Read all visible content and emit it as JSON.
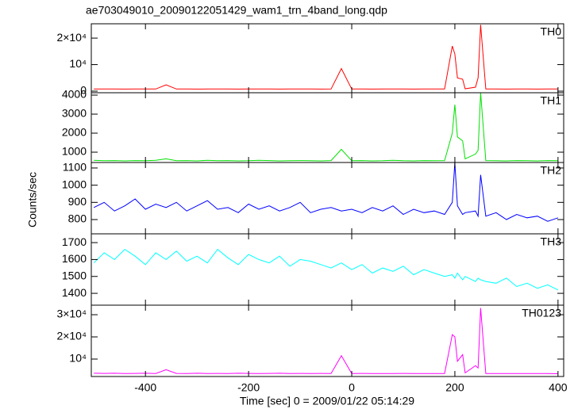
{
  "title": "ae703049010_20090122051429_wam1_trn_4band_long.qdp",
  "ylabel": "Counts/sec",
  "chart_data": [
    {
      "type": "line",
      "xlim": [
        -505,
        411
      ],
      "ylim": [
        -600,
        25400
      ],
      "yticks": [
        0,
        {
          "value": 10000,
          "label": "10⁴"
        },
        {
          "value": 20000,
          "label": "2×10⁴"
        }
      ],
      "x": [
        -500,
        -480,
        -460,
        -440,
        -420,
        -400,
        -380,
        -360,
        -340,
        -320,
        -300,
        -280,
        -260,
        -240,
        -220,
        -200,
        -180,
        -160,
        -140,
        -120,
        -100,
        -80,
        -60,
        -40,
        -20,
        0,
        20,
        40,
        60,
        80,
        100,
        120,
        140,
        160,
        180,
        195,
        200,
        205,
        215,
        220,
        240,
        245,
        250,
        260,
        280,
        300,
        320,
        340,
        360,
        380,
        400
      ],
      "series": [
        {
          "name": "TH0",
          "color": "#ff0000",
          "values": [
            820,
            790,
            810,
            780,
            800,
            790,
            810,
            2400,
            800,
            790,
            780,
            800,
            810,
            790,
            780,
            800,
            790,
            810,
            780,
            800,
            790,
            800,
            780,
            790,
            8500,
            800,
            790,
            780,
            800,
            810,
            790,
            780,
            800,
            790,
            800,
            17000,
            14000,
            5000,
            4500,
            900,
            1500,
            5000,
            25000,
            800,
            790,
            780,
            800,
            790,
            780,
            800,
            790
          ]
        }
      ]
    },
    {
      "type": "line",
      "xlim": [
        -505,
        411
      ],
      "ylim": [
        458,
        4125
      ],
      "yticks": [
        1000,
        2000,
        3000,
        4000
      ],
      "x": [
        -500,
        -480,
        -460,
        -440,
        -420,
        -400,
        -380,
        -360,
        -340,
        -320,
        -300,
        -280,
        -260,
        -240,
        -220,
        -200,
        -180,
        -160,
        -140,
        -120,
        -100,
        -80,
        -60,
        -40,
        -20,
        0,
        20,
        40,
        60,
        80,
        100,
        120,
        140,
        160,
        180,
        195,
        200,
        205,
        215,
        220,
        240,
        245,
        250,
        260,
        280,
        300,
        320,
        340,
        360,
        380,
        400
      ],
      "series": [
        {
          "name": "TH1",
          "color": "#00e000",
          "values": [
            570,
            550,
            560,
            540,
            560,
            550,
            570,
            650,
            550,
            560,
            540,
            570,
            550,
            560,
            540,
            550,
            570,
            560,
            540,
            550,
            560,
            550,
            540,
            560,
            1150,
            550,
            560,
            540,
            550,
            570,
            550,
            540,
            560,
            550,
            560,
            2000,
            3500,
            1800,
            1600,
            650,
            900,
            1100,
            4125,
            560,
            550,
            540,
            560,
            550,
            540,
            560,
            550
          ]
        }
      ]
    },
    {
      "type": "line",
      "xlim": [
        -505,
        411
      ],
      "ylim": [
        717,
        1132
      ],
      "yticks": [
        800,
        900,
        1000,
        1100
      ],
      "x": [
        -500,
        -480,
        -460,
        -440,
        -420,
        -400,
        -380,
        -360,
        -340,
        -320,
        -300,
        -280,
        -260,
        -240,
        -220,
        -200,
        -180,
        -160,
        -140,
        -120,
        -100,
        -80,
        -60,
        -40,
        -20,
        0,
        20,
        40,
        60,
        80,
        100,
        120,
        140,
        160,
        180,
        195,
        200,
        205,
        215,
        220,
        240,
        245,
        250,
        260,
        280,
        300,
        320,
        340,
        360,
        380,
        400
      ],
      "series": [
        {
          "name": "TH2",
          "color": "#0000ff",
          "values": [
            870,
            900,
            850,
            880,
            920,
            860,
            890,
            870,
            900,
            850,
            880,
            910,
            860,
            870,
            840,
            890,
            860,
            880,
            850,
            870,
            900,
            840,
            860,
            870,
            850,
            860,
            840,
            870,
            850,
            880,
            830,
            860,
            840,
            850,
            830,
            900,
            1130,
            880,
            830,
            840,
            850,
            820,
            1060,
            820,
            840,
            800,
            830,
            810,
            820,
            790,
            810
          ]
        }
      ]
    },
    {
      "type": "line",
      "xlim": [
        -505,
        411
      ],
      "ylim": [
        1330,
        1752
      ],
      "yticks": [
        1400,
        1500,
        1600,
        1700
      ],
      "x": [
        -500,
        -480,
        -460,
        -440,
        -420,
        -400,
        -380,
        -360,
        -340,
        -320,
        -300,
        -280,
        -260,
        -240,
        -220,
        -200,
        -180,
        -160,
        -140,
        -120,
        -100,
        -80,
        -60,
        -40,
        -20,
        0,
        20,
        40,
        60,
        80,
        100,
        120,
        140,
        160,
        180,
        195,
        200,
        205,
        215,
        220,
        240,
        245,
        250,
        260,
        280,
        300,
        320,
        340,
        360,
        380,
        400
      ],
      "series": [
        {
          "name": "TH3",
          "color": "#00ffff",
          "values": [
            1580,
            1640,
            1600,
            1660,
            1620,
            1570,
            1640,
            1600,
            1650,
            1590,
            1620,
            1580,
            1660,
            1610,
            1570,
            1630,
            1600,
            1580,
            1620,
            1560,
            1600,
            1590,
            1570,
            1550,
            1580,
            1540,
            1570,
            1520,
            1550,
            1530,
            1560,
            1510,
            1540,
            1520,
            1500,
            1510,
            1490,
            1520,
            1480,
            1500,
            1470,
            1490,
            1480,
            1470,
            1460,
            1490,
            1440,
            1460,
            1430,
            1450,
            1420
          ]
        }
      ]
    },
    {
      "type": "line",
      "xlim": [
        -505,
        411
      ],
      "ylim": [
        2140,
        34300
      ],
      "xlabel": "Time [sec] 0 = 2009/01/22 05:14:29",
      "xticks": [
        -400,
        -200,
        0,
        200,
        400
      ],
      "yticks": [
        {
          "value": 10000,
          "label": "10⁴"
        },
        {
          "value": 20000,
          "label": "2×10⁴"
        },
        {
          "value": 30000,
          "label": "3×10⁴"
        }
      ],
      "x": [
        -500,
        -480,
        -460,
        -440,
        -420,
        -400,
        -380,
        -360,
        -340,
        -320,
        -300,
        -280,
        -260,
        -240,
        -220,
        -200,
        -180,
        -160,
        -140,
        -120,
        -100,
        -80,
        -60,
        -40,
        -20,
        0,
        20,
        40,
        60,
        80,
        100,
        120,
        140,
        160,
        180,
        195,
        200,
        205,
        215,
        220,
        240,
        245,
        250,
        260,
        280,
        300,
        320,
        340,
        360,
        380,
        400
      ],
      "series": [
        {
          "name": "TH0123",
          "color": "#ff00ff",
          "values": [
            3600,
            3550,
            3600,
            3500,
            3550,
            3600,
            3500,
            5200,
            3550,
            3500,
            3600,
            3500,
            3550,
            3500,
            3600,
            3550,
            3500,
            3550,
            3600,
            3500,
            3550,
            3500,
            3550,
            3500,
            11500,
            3500,
            3550,
            3500,
            3450,
            3500,
            3550,
            3500,
            3450,
            3500,
            3500,
            21000,
            20000,
            9000,
            12000,
            3800,
            7000,
            6000,
            33000,
            3450,
            3500,
            3450,
            3500,
            3450,
            3500,
            3450,
            3400
          ]
        }
      ]
    }
  ]
}
